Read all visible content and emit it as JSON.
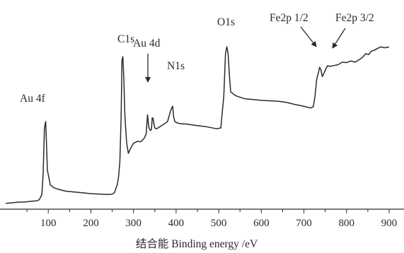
{
  "chart_data": {
    "type": "line",
    "title": "",
    "xlabel": "结合能  Binding energy  /eV",
    "ylabel": "",
    "xlim": [
      0,
      900
    ],
    "x_ticks": [
      100,
      200,
      300,
      400,
      500,
      600,
      700,
      800,
      900
    ],
    "x_tick_labels": [
      "100",
      "200",
      "300",
      "400",
      "500",
      "600",
      "700",
      "800",
      "900"
    ],
    "y_ticks_shown": false,
    "grid": false,
    "line_color": "#2a2a2a",
    "series": [
      {
        "name": "",
        "x": [
          0,
          10,
          30,
          40,
          52,
          60,
          72,
          78,
          80,
          82,
          85,
          88,
          91,
          94,
          98,
          105,
          115,
          125,
          140,
          160,
          180,
          200,
          220,
          240,
          250,
          255,
          258,
          262,
          265,
          268,
          271,
          273,
          275,
          277,
          280,
          284,
          288,
          292,
          296,
          300,
          305,
          310,
          315,
          318,
          322,
          326,
          330,
          333,
          336,
          339,
          342,
          344,
          346,
          349,
          352,
          356,
          362,
          370,
          380,
          386,
          390,
          392,
          394,
          397,
          402,
          410,
          425,
          445,
          470,
          495,
          505,
          512,
          516,
          519,
          522,
          525,
          528,
          531,
          534,
          538,
          545,
          560,
          580,
          600,
          620,
          640,
          660,
          680,
          700,
          715,
          722,
          726,
          730,
          734,
          737,
          740,
          743,
          746,
          749,
          752,
          756,
          760,
          770,
          780,
          790,
          800,
          810,
          820,
          830,
          838,
          845,
          852,
          858,
          865,
          872,
          880,
          890,
          900
        ],
        "y": [
          -3,
          -2,
          0,
          0,
          1,
          2,
          3,
          5,
          8,
          12,
          18,
          68,
          175,
          190,
          75,
          40,
          33,
          30,
          26,
          24,
          22,
          20,
          19,
          18,
          19,
          22,
          30,
          42,
          60,
          95,
          200,
          335,
          343,
          300,
          200,
          140,
          115,
          124,
          132,
          139,
          141,
          144,
          142,
          143,
          147,
          152,
          162,
          206,
          177,
          169,
          171,
          199,
          197,
          178,
          173,
          174,
          178,
          183,
          190,
          212,
          223,
          226,
          202,
          190,
          187,
          185,
          184,
          181,
          178,
          173,
          175,
          250,
          350,
          366,
          350,
          300,
          260,
          258,
          255,
          252,
          249,
          244,
          242,
          240,
          239,
          238,
          235,
          230,
          226,
          222,
          225,
          250,
          290,
          305,
          318,
          312,
          296,
          302,
          308,
          316,
          322,
          320,
          322,
          324,
          330,
          329,
          333,
          330,
          336,
          342,
          350,
          348,
          356,
          358,
          362,
          366,
          364,
          366
        ]
      }
    ],
    "annotations": [
      {
        "text": "Au 4f",
        "x": 84,
        "arrow": false
      },
      {
        "text": "C1s",
        "x": 277,
        "arrow": false
      },
      {
        "text": "Au 4d",
        "x": 333,
        "arrow": true
      },
      {
        "text": "N1s",
        "x": 392,
        "arrow": false
      },
      {
        "text": "O1s",
        "x": 521,
        "arrow": false
      },
      {
        "text": "Fe2p 1/2",
        "x": 735,
        "arrow": true
      },
      {
        "text": "Fe2p 3/2",
        "x": 750,
        "arrow": true
      }
    ]
  }
}
